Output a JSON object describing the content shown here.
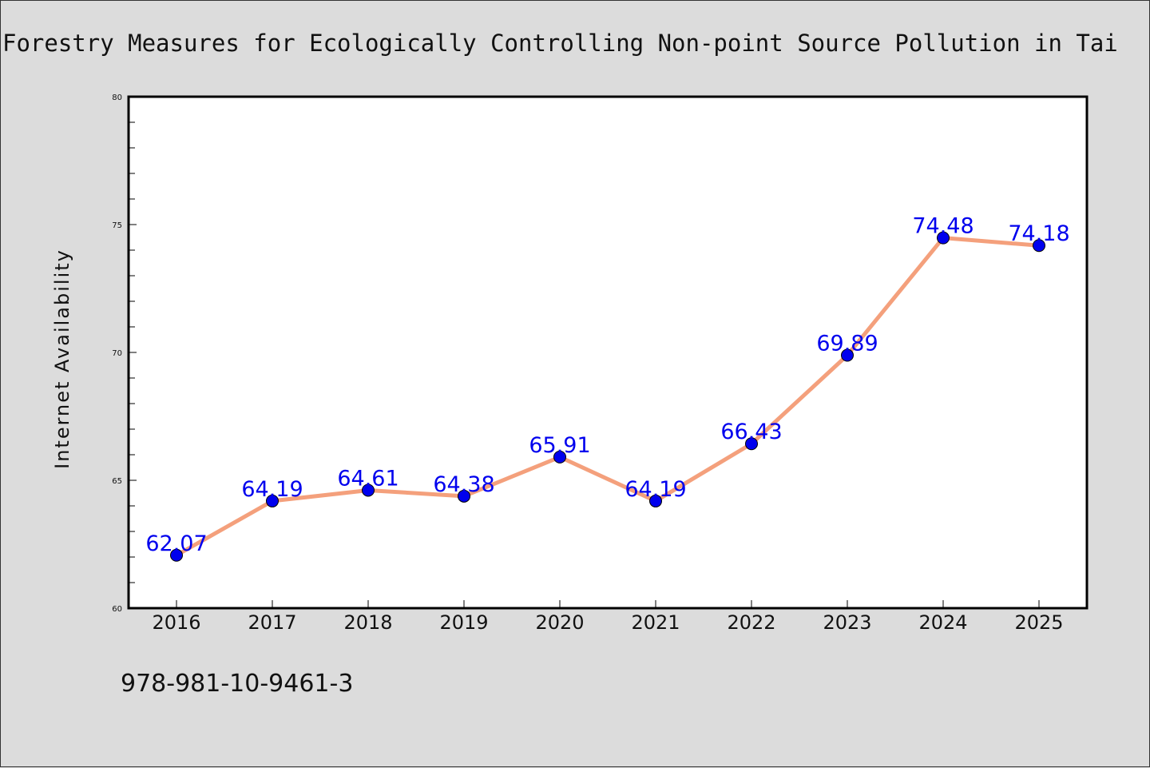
{
  "chart_data": {
    "type": "line",
    "title": "Forestry Measures for Ecologically Controlling Non-point Source Pollution in Tai",
    "xlabel": "",
    "ylabel": "Internet Availability",
    "categories": [
      "2016",
      "2017",
      "2018",
      "2019",
      "2020",
      "2021",
      "2022",
      "2023",
      "2024",
      "2025"
    ],
    "series": [
      {
        "values": [
          62.07,
          64.19,
          64.61,
          64.38,
          65.91,
          64.19,
          66.43,
          69.89,
          74.48,
          74.18
        ],
        "labels": [
          "62.07",
          "64.19",
          "64.61",
          "64.38",
          "65.91",
          "64.19",
          "66.43",
          "69.89",
          "74.48",
          "74.18"
        ]
      }
    ],
    "ylim": [
      60,
      80
    ],
    "yticks": [
      "60",
      "65",
      "70",
      "75",
      "80"
    ],
    "grid": false,
    "legend": "none",
    "colors": {
      "line": "#f4a07c",
      "marker": "#0000ee",
      "label": "#0000ee",
      "background": "#dcdcdc",
      "plot_background": "#ffffff"
    }
  },
  "footer_text": "978-981-10-9461-3"
}
